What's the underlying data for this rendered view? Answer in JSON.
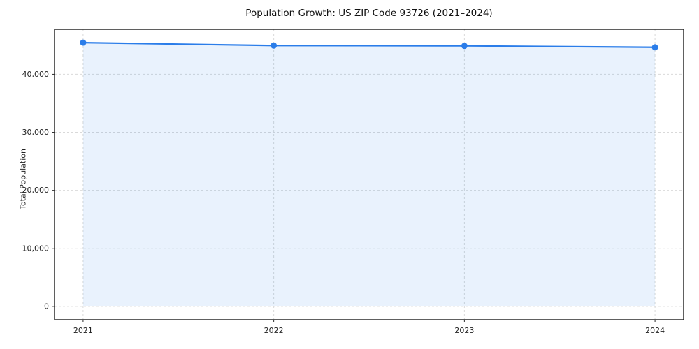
{
  "chart_data": {
    "type": "area",
    "title": "Population Growth: US ZIP Code 93726 (2021–2024)",
    "xlabel": "",
    "ylabel": "Total Population",
    "x": [
      2021,
      2022,
      2023,
      2024
    ],
    "series": [
      {
        "name": "Total Population",
        "values": [
          45450,
          44950,
          44900,
          44650
        ]
      }
    ],
    "xlim": [
      2020.85,
      2024.15
    ],
    "ylim": [
      -2300,
      47750
    ],
    "yticks": [
      0,
      10000,
      20000,
      30000,
      40000
    ],
    "ytick_labels": [
      "0",
      "10,000",
      "20,000",
      "30,000",
      "40,000"
    ],
    "xtick_labels": [
      "2021",
      "2022",
      "2023",
      "2024"
    ],
    "grid": true,
    "legend": "none",
    "line_color": "#2b7de9",
    "fill_color": "#2b7de9",
    "fill_opacity": 0.1,
    "grid_color": "#d9d9d9",
    "marker": "circle"
  }
}
